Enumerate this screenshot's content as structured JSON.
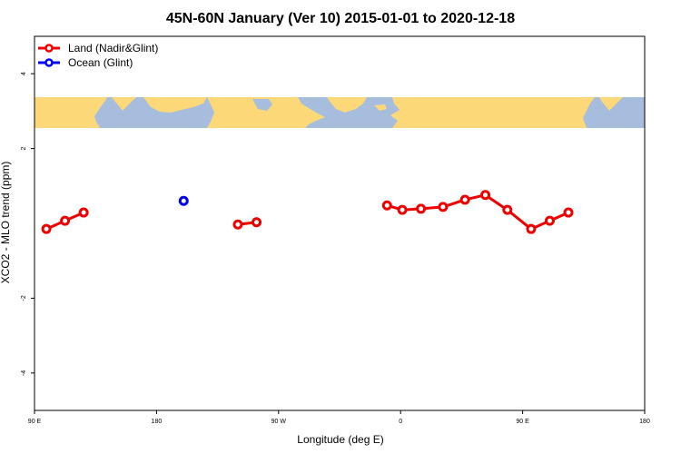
{
  "chart_data": {
    "type": "line",
    "title": "45N-60N January (Ver 10)   2015-01-01 to 2020-12-18",
    "xlabel": "Longitude (deg E)",
    "ylabel": "XCO2 - MLO trend (ppm)",
    "xlim": [
      90,
      450
    ],
    "ylim": [
      -5,
      5
    ],
    "x_ticks": [
      {
        "value": 90,
        "label": "90 E"
      },
      {
        "value": 162,
        "label": "180"
      },
      {
        "value": 234,
        "label": "90 W"
      },
      {
        "value": 306,
        "label": "0"
      },
      {
        "value": 378,
        "label": "90 E"
      },
      {
        "value": 450,
        "label": "180"
      }
    ],
    "y_ticks": [
      {
        "value": 4,
        "label": "4"
      },
      {
        "value": 2,
        "label": "2"
      },
      {
        "value": -2,
        "label": "-2"
      },
      {
        "value": -4,
        "label": "-4"
      }
    ],
    "series": [
      {
        "name": "Land (Nadir&Glint)",
        "color": "#ee0000",
        "segments": [
          [
            [
              97,
              -0.15
            ],
            [
              108,
              0.07
            ],
            [
              119,
              0.29
            ]
          ],
          [
            [
              210,
              -0.03
            ],
            [
              221,
              0.03
            ]
          ],
          [
            [
              298,
              0.48
            ],
            [
              307,
              0.36
            ],
            [
              318,
              0.39
            ],
            [
              331,
              0.44
            ],
            [
              344,
              0.63
            ],
            [
              356,
              0.76
            ],
            [
              369,
              0.36
            ],
            [
              383,
              -0.15
            ],
            [
              394,
              0.07
            ],
            [
              405,
              0.29
            ]
          ]
        ]
      },
      {
        "name": "Ocean (Glint)",
        "color": "#0000ee",
        "segments": [
          [
            [
              178,
              0.6
            ]
          ]
        ]
      }
    ],
    "map_band": {
      "ocean_color": "#a7bddd",
      "land_color": "#fcd879",
      "y_range": [
        2.85,
        3.65
      ]
    },
    "legend_position": "top-left",
    "grid": false
  }
}
